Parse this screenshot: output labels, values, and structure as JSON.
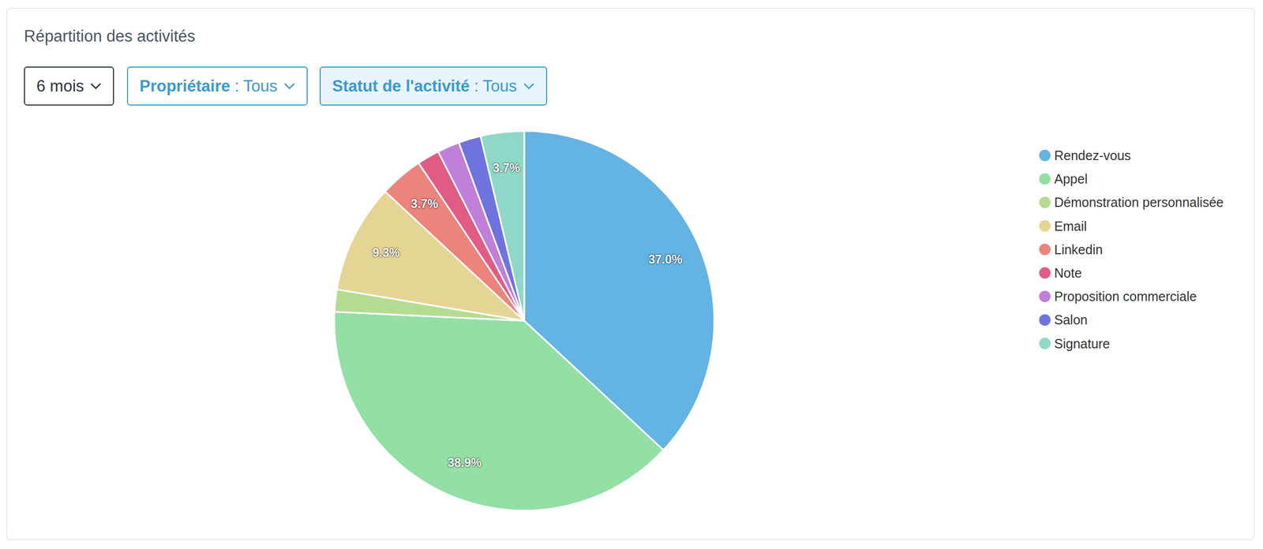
{
  "chart_data": {
    "type": "pie",
    "title": "Répartition des activités",
    "categories": [
      "Rendez-vous",
      "Appel",
      "Démonstration personnalisée",
      "Email",
      "Linkedin",
      "Note",
      "Proposition commerciale",
      "Salon",
      "Signature"
    ],
    "values": [
      37.0,
      38.9,
      1.9,
      9.3,
      3.7,
      1.9,
      1.9,
      1.9,
      3.7
    ],
    "value_labels": [
      "37.0%",
      "38.9%",
      null,
      "9.3%",
      "3.7%",
      null,
      null,
      null,
      "3.7%"
    ],
    "colors": [
      "#63b3e3",
      "#93dfa5",
      "#b4dc92",
      "#e5d595",
      "#ec837c",
      "#e05c85",
      "#c07fd9",
      "#6f73de",
      "#8fd8c7"
    ],
    "data_labels": true,
    "legend": "right"
  },
  "filters": [
    {
      "value": "6 mois"
    },
    {
      "name": "Propriétaire",
      "value": ": Tous"
    },
    {
      "name": "Statut de l'activité",
      "value": ": Tous"
    }
  ]
}
